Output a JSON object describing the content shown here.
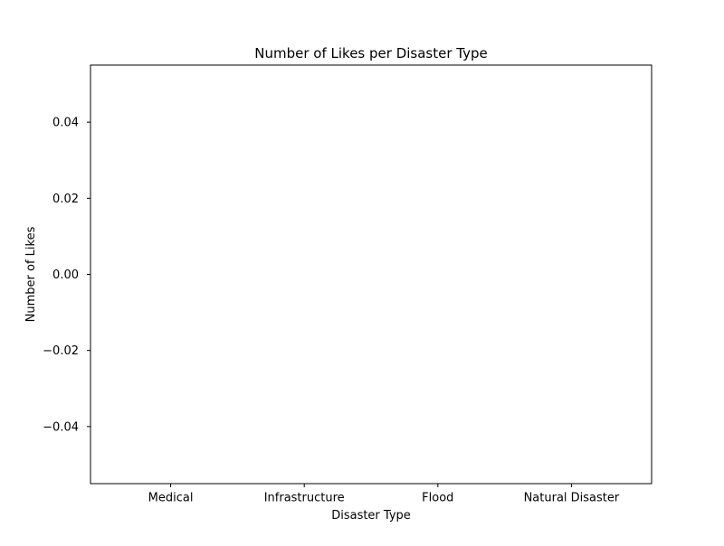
{
  "chart_data": {
    "type": "bar",
    "title": "Number of Likes per Disaster Type",
    "xlabel": "Disaster Type",
    "ylabel": "Number of Likes",
    "categories": [
      "Medical",
      "Infrastructure",
      "Flood",
      "Natural Disaster"
    ],
    "values": [
      0,
      0,
      0,
      0
    ],
    "ylim": [
      -0.055,
      0.055
    ],
    "yticks": [
      -0.04,
      -0.02,
      0.0,
      0.02,
      0.04
    ],
    "ytick_labels": [
      "−0.04",
      "−0.02",
      "0.00",
      "0.02",
      "0.04"
    ],
    "grid": false,
    "legend": "none",
    "colors": {
      "bar": "#1f77b4",
      "axes": "#000000",
      "background": "#ffffff"
    }
  }
}
